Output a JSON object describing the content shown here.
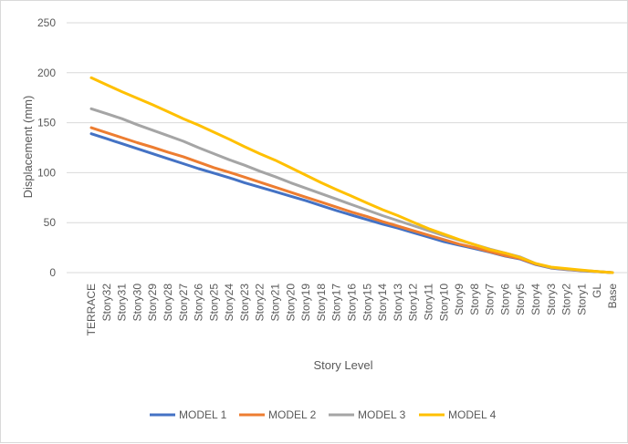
{
  "chart_data": {
    "type": "line",
    "title": "",
    "xlabel": "Story Level",
    "ylabel": "Displacement (mm)",
    "ylim": [
      0,
      250
    ],
    "yticks": [
      0,
      50,
      100,
      150,
      200,
      250
    ],
    "grid": true,
    "legend_position": "bottom",
    "categories": [
      "TERRACE",
      "Story32",
      "Story31",
      "Story30",
      "Story29",
      "Story28",
      "Story27",
      "Story26",
      "Story25",
      "Story24",
      "Story23",
      "Story22",
      "Story21",
      "Story20",
      "Story19",
      "Story18",
      "Story17",
      "Story16",
      "Story15",
      "Story14",
      "Story13",
      "Story12",
      "Story11",
      "Story10",
      "Story9",
      "Story8",
      "Story7",
      "Story6",
      "Story5",
      "Story4",
      "Story3",
      "Story2",
      "Story1",
      "GL",
      "Base"
    ],
    "series": [
      {
        "name": "MODEL 1",
        "color": "#4472C4",
        "values": [
          139,
          134,
          129,
          124,
          119,
          114,
          109,
          104,
          99.5,
          95,
          90,
          85.5,
          81,
          76.5,
          72,
          67,
          62,
          57.5,
          53,
          48.5,
          44.5,
          40,
          35.5,
          31,
          27.5,
          24,
          20.5,
          16.5,
          13.5,
          8,
          4.5,
          3,
          1.8,
          0.9,
          0
        ]
      },
      {
        "name": "MODEL 2",
        "color": "#ED7D31",
        "values": [
          145,
          140,
          135,
          130,
          125.5,
          120.5,
          116,
          110.5,
          105,
          100.5,
          95.5,
          90.5,
          85.5,
          80.5,
          75.5,
          70.5,
          65.5,
          60.5,
          56,
          51,
          46.5,
          42,
          37.5,
          33,
          28.5,
          25,
          21,
          17,
          14,
          8.5,
          4.8,
          3.2,
          2,
          1,
          0
        ]
      },
      {
        "name": "MODEL 3",
        "color": "#A5A5A5",
        "values": [
          164,
          159,
          154,
          148,
          142.5,
          137,
          131.5,
          125,
          119,
          113,
          107.5,
          101.5,
          96,
          90,
          84.5,
          79,
          73.5,
          68,
          62.5,
          57,
          52,
          47,
          42,
          37,
          32.5,
          28,
          23.5,
          19.5,
          15.5,
          9,
          5,
          3.5,
          2.2,
          1.1,
          0
        ]
      },
      {
        "name": "MODEL 4",
        "color": "#FFC000",
        "values": [
          195,
          188,
          181,
          174.5,
          168,
          161,
          154,
          147.5,
          140.5,
          133.5,
          126,
          119,
          112.5,
          105,
          97.5,
          90,
          83,
          76.5,
          69.5,
          63,
          57,
          50.5,
          44,
          38.5,
          33,
          28,
          23,
          19.5,
          15,
          9,
          5.5,
          4,
          2.5,
          1.2,
          0
        ]
      }
    ]
  }
}
